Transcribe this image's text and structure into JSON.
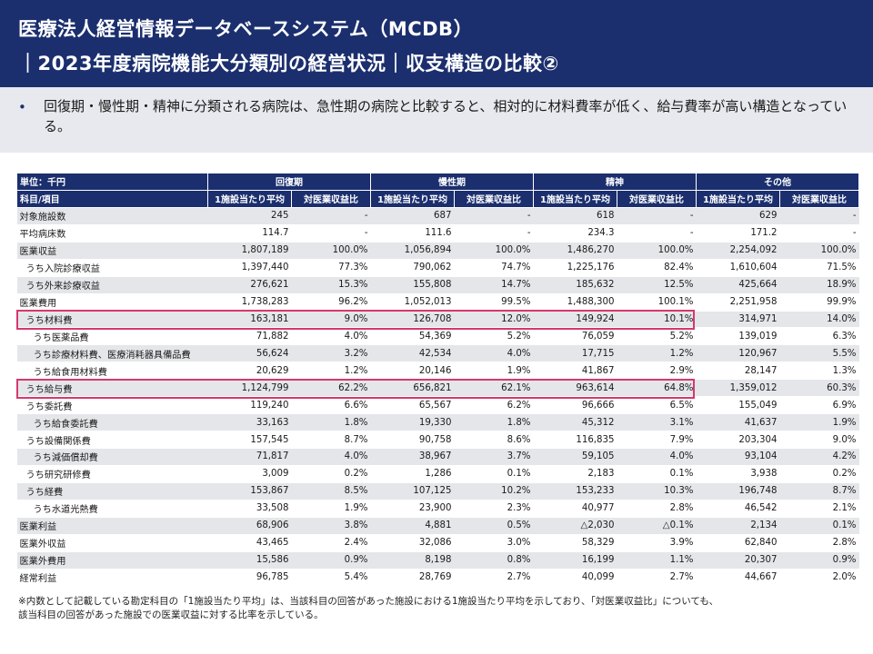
{
  "header": {
    "title_line1": "医療法人経営情報データベースシステム（MCDB）",
    "title_line2": "｜2023年度病院機能大分類別の経営状況｜収支構造の比較②"
  },
  "summary": {
    "bullet": "•",
    "text": "回復期・慢性期・精神に分類される病院は、急性期の病院と比較すると、相対的に材料費率が低く、給与費率が高い構造となっている。"
  },
  "table": {
    "unit_label": "単位：千円",
    "item_label": "科目/項目",
    "groups": [
      "回復期",
      "慢性期",
      "精神",
      "その他"
    ],
    "subheaders": [
      "1施設当たり平均",
      "対医業収益比"
    ],
    "rows": [
      {
        "label": "対象施設数",
        "cells": [
          "245",
          "-",
          "687",
          "-",
          "618",
          "-",
          "629",
          "-"
        ]
      },
      {
        "label": "平均病床数",
        "cells": [
          "114.7",
          "-",
          "111.6",
          "-",
          "234.3",
          "-",
          "171.2",
          "-"
        ]
      },
      {
        "label": "医業収益",
        "cells": [
          "1,807,189",
          "100.0%",
          "1,056,894",
          "100.0%",
          "1,486,270",
          "100.0%",
          "2,254,092",
          "100.0%"
        ]
      },
      {
        "label": "うち入院診療収益",
        "cells": [
          "1,397,440",
          "77.3%",
          "790,062",
          "74.7%",
          "1,225,176",
          "82.4%",
          "1,610,604",
          "71.5%"
        ]
      },
      {
        "label": "うち外来診療収益",
        "cells": [
          "276,621",
          "15.3%",
          "155,808",
          "14.7%",
          "185,632",
          "12.5%",
          "425,664",
          "18.9%"
        ]
      },
      {
        "label": "医業費用",
        "cells": [
          "1,738,283",
          "96.2%",
          "1,052,013",
          "99.5%",
          "1,488,300",
          "100.1%",
          "2,251,958",
          "99.9%"
        ]
      },
      {
        "label": "うち材料費",
        "cells": [
          "163,181",
          "9.0%",
          "126,708",
          "12.0%",
          "149,924",
          "10.1%",
          "314,971",
          "14.0%"
        ]
      },
      {
        "label": "うち医薬品費",
        "cells": [
          "71,882",
          "4.0%",
          "54,369",
          "5.2%",
          "76,059",
          "5.2%",
          "139,019",
          "6.3%"
        ]
      },
      {
        "label": "うち診療材料費、医療消耗器具備品費",
        "cells": [
          "56,624",
          "3.2%",
          "42,534",
          "4.0%",
          "17,715",
          "1.2%",
          "120,967",
          "5.5%"
        ]
      },
      {
        "label": "うち給食用材料費",
        "cells": [
          "20,629",
          "1.2%",
          "20,146",
          "1.9%",
          "41,867",
          "2.9%",
          "28,147",
          "1.3%"
        ]
      },
      {
        "label": "うち給与費",
        "cells": [
          "1,124,799",
          "62.2%",
          "656,821",
          "62.1%",
          "963,614",
          "64.8%",
          "1,359,012",
          "60.3%"
        ]
      },
      {
        "label": "うち委託費",
        "cells": [
          "119,240",
          "6.6%",
          "65,567",
          "6.2%",
          "96,666",
          "6.5%",
          "155,049",
          "6.9%"
        ]
      },
      {
        "label": "うち給食委託費",
        "cells": [
          "33,163",
          "1.8%",
          "19,330",
          "1.8%",
          "45,312",
          "3.1%",
          "41,637",
          "1.9%"
        ]
      },
      {
        "label": "うち設備関係費",
        "cells": [
          "157,545",
          "8.7%",
          "90,758",
          "8.6%",
          "116,835",
          "7.9%",
          "203,304",
          "9.0%"
        ]
      },
      {
        "label": "うち減価償却費",
        "cells": [
          "71,817",
          "4.0%",
          "38,967",
          "3.7%",
          "59,105",
          "4.0%",
          "93,104",
          "4.2%"
        ]
      },
      {
        "label": "うち研究研修費",
        "cells": [
          "3,009",
          "0.2%",
          "1,286",
          "0.1%",
          "2,183",
          "0.1%",
          "3,938",
          "0.2%"
        ]
      },
      {
        "label": "うち経費",
        "cells": [
          "153,867",
          "8.5%",
          "107,125",
          "10.2%",
          "153,233",
          "10.3%",
          "196,748",
          "8.7%"
        ]
      },
      {
        "label": "うち水道光熱費",
        "cells": [
          "33,508",
          "1.9%",
          "23,900",
          "2.3%",
          "40,977",
          "2.8%",
          "46,542",
          "2.1%"
        ]
      },
      {
        "label": "医業利益",
        "cells": [
          "68,906",
          "3.8%",
          "4,881",
          "0.5%",
          "△2,030",
          "△0.1%",
          "2,134",
          "0.1%"
        ]
      },
      {
        "label": "医業外収益",
        "cells": [
          "43,465",
          "2.4%",
          "32,086",
          "3.0%",
          "58,329",
          "3.9%",
          "62,840",
          "2.8%"
        ]
      },
      {
        "label": "医業外費用",
        "cells": [
          "15,586",
          "0.9%",
          "8,198",
          "0.8%",
          "16,199",
          "1.1%",
          "20,307",
          "0.9%"
        ]
      },
      {
        "label": "経常利益",
        "cells": [
          "96,785",
          "5.4%",
          "28,769",
          "2.7%",
          "40,099",
          "2.7%",
          "44,667",
          "2.0%"
        ]
      }
    ]
  },
  "footnote": {
    "line1": "※内数として記載している勘定科目の「1施設当たり平均」は、当該科目の回答があった施設における1施設当たり平均を示しており、「対医業収益比」についても、",
    "line2": "該当科目の回答があった施設での医業収益に対する比率を示している。"
  },
  "colors": {
    "header_bg": "#1b2f6e",
    "summary_bg": "#e8e9ee",
    "row_shade": "#e5e6ea",
    "highlight_border": "#d6386c"
  }
}
